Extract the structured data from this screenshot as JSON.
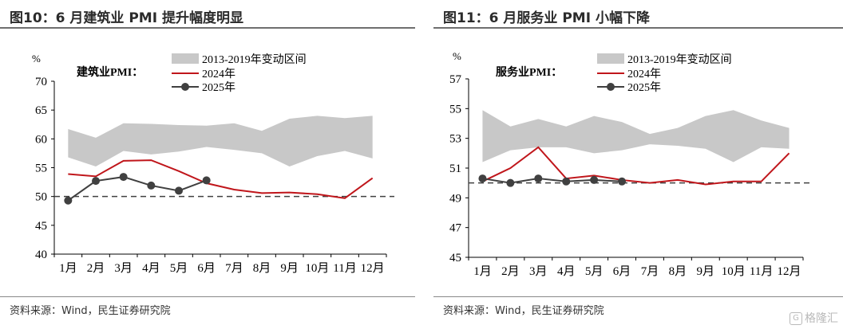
{
  "source": "资料来源：Wind，民生证券研究院",
  "watermark": "格隆汇",
  "watermark_logo": "G",
  "colors": {
    "band": "#c8c8c8",
    "line2024": "#c0161b",
    "line2025": "#404040",
    "ref": "#404040"
  },
  "chart_data": [
    {
      "type": "line",
      "title": "图10：6 月建筑业 PMI 提升幅度明显",
      "subtitle": "建筑业PMI：",
      "ylabel": "%",
      "ylim": [
        40,
        70
      ],
      "yticks": [
        40,
        45,
        50,
        55,
        60,
        65,
        70
      ],
      "reference_line": 50,
      "categories": [
        "1月",
        "2月",
        "3月",
        "4月",
        "5月",
        "6月",
        "7月",
        "8月",
        "9月",
        "10月",
        "11月",
        "12月"
      ],
      "band": {
        "name": "2013-2019年变动区间",
        "upper": [
          61.7,
          60.2,
          62.7,
          62.6,
          62.4,
          62.3,
          62.7,
          61.4,
          63.5,
          64.0,
          63.6,
          64.0
        ],
        "lower": [
          56.8,
          55.2,
          57.9,
          57.3,
          57.8,
          58.6,
          58.1,
          57.5,
          55.2,
          57.0,
          57.9,
          56.6
        ]
      },
      "series": [
        {
          "name": "2024年",
          "values": [
            53.9,
            53.5,
            56.2,
            56.3,
            54.4,
            52.3,
            51.2,
            50.6,
            50.7,
            50.4,
            49.7,
            53.2
          ]
        },
        {
          "name": "2025年",
          "values": [
            49.3,
            52.7,
            53.4,
            51.9,
            51.0,
            52.8,
            null,
            null,
            null,
            null,
            null,
            null
          ]
        }
      ],
      "legend_position": "top"
    },
    {
      "type": "line",
      "title": "图11：6 月服务业 PMI 小幅下降",
      "subtitle": "服务业PMI：",
      "ylabel": "%",
      "ylim": [
        45,
        57
      ],
      "yticks": [
        45,
        47,
        49,
        51,
        53,
        55,
        57
      ],
      "reference_line": 50,
      "categories": [
        "1月",
        "2月",
        "3月",
        "4月",
        "5月",
        "6月",
        "7月",
        "8月",
        "9月",
        "10月",
        "11月",
        "12月"
      ],
      "band": {
        "name": "2013-2019年变动区间",
        "upper": [
          54.9,
          53.8,
          54.3,
          53.8,
          54.5,
          54.1,
          53.3,
          53.7,
          54.5,
          54.9,
          54.2,
          53.7
        ],
        "lower": [
          51.4,
          52.2,
          52.4,
          52.4,
          52.0,
          52.2,
          52.6,
          52.5,
          52.3,
          51.4,
          52.4,
          52.3
        ]
      },
      "series": [
        {
          "name": "2024年",
          "values": [
            50.1,
            51.0,
            52.4,
            50.3,
            50.5,
            50.2,
            50.0,
            50.2,
            49.9,
            50.1,
            50.1,
            52.0
          ]
        },
        {
          "name": "2025年",
          "values": [
            50.3,
            50.0,
            50.3,
            50.1,
            50.2,
            50.1,
            null,
            null,
            null,
            null,
            null,
            null
          ]
        }
      ],
      "legend_position": "top"
    }
  ]
}
